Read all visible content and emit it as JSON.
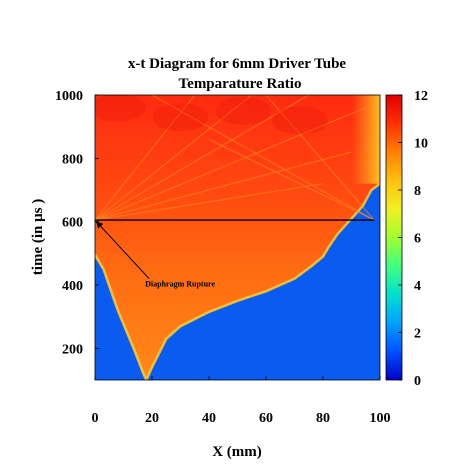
{
  "chart_data": {
    "type": "heatmap",
    "title_line1": "x-t Diagram for 6mm Driver Tube",
    "title_line2": "Temparature Ratio",
    "xlabel": "X (mm)",
    "ylabel": "time (in μs )",
    "xlim": [
      0,
      100
    ],
    "ylim": [
      100,
      1000
    ],
    "x_ticks": [
      "0",
      "20",
      "40",
      "60",
      "80",
      "100"
    ],
    "y_ticks": [
      "200",
      "400",
      "600",
      "800",
      "1000"
    ],
    "x_tick_values": [
      0,
      20,
      40,
      60,
      80,
      100
    ],
    "y_tick_values": [
      200,
      400,
      600,
      800,
      1000
    ],
    "colorbar": {
      "range": [
        0,
        12
      ],
      "ticks": [
        "0",
        "2",
        "4",
        "6",
        "8",
        "10",
        "12"
      ],
      "tick_values": [
        0,
        2,
        4,
        6,
        8,
        10,
        12
      ],
      "colors": [
        "#0000c8",
        "#0050ff",
        "#00a0ff",
        "#00e0d0",
        "#40ff80",
        "#a0ff30",
        "#f0f020",
        "#ffc010",
        "#ff8000",
        "#ff3000",
        "#e00000"
      ]
    },
    "background_value": 1.2,
    "front_boundary": {
      "description_key": "lower envelope of heated region",
      "x": [
        0,
        3,
        8,
        14,
        17,
        18,
        20,
        25,
        30,
        40,
        50,
        60,
        70,
        76,
        80,
        82,
        85,
        88,
        90,
        94,
        97,
        100
      ],
      "t": [
        495,
        450,
        320,
        190,
        120,
        100,
        140,
        230,
        270,
        315,
        350,
        380,
        420,
        460,
        490,
        520,
        560,
        590,
        610,
        650,
        700,
        720
      ]
    },
    "horizontal_line": {
      "t": 605,
      "x_from": 0,
      "x_to": 98
    },
    "annotation": {
      "text": "Diaphragm Rupture",
      "arrow_tip": {
        "x": 0.5,
        "t": 600
      },
      "arrow_tail": {
        "x": 19,
        "t": 420
      }
    },
    "region_values": {
      "upper_left": 11.5,
      "upper_band": 10.8,
      "middle": 9.6,
      "right_edge": 8.2
    }
  }
}
